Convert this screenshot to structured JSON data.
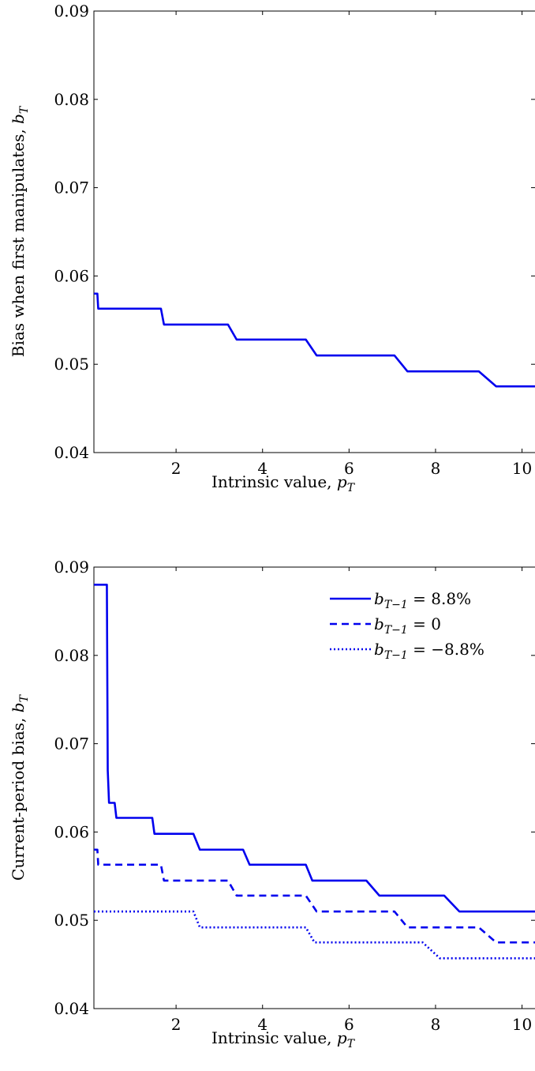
{
  "colors": {
    "series": "#0000ee",
    "axis": "#000000",
    "background": "#ffffff"
  },
  "chart_data": [
    {
      "type": "line",
      "xlabel": "Intrinsic value, ",
      "xlabel_var": "p",
      "xlabel_sub": "T",
      "ylabel": "Bias when first manipulates, ",
      "ylabel_var": "b",
      "ylabel_sub": "T",
      "xlim": [
        0.1,
        10.3
      ],
      "ylim": [
        0.04,
        0.09
      ],
      "xticks": [
        2,
        4,
        6,
        8,
        10
      ],
      "xtick_labels": [
        "2",
        "4",
        "6",
        "8",
        "10"
      ],
      "yticks": [
        0.04,
        0.05,
        0.06,
        0.07,
        0.08,
        0.09
      ],
      "ytick_labels": [
        "0.04",
        "0.05",
        "0.06",
        "0.07",
        "0.08",
        "0.09"
      ],
      "grid": false,
      "series": [
        {
          "style": "solid",
          "points": [
            [
              0.1,
              0.058
            ],
            [
              0.18,
              0.058
            ],
            [
              0.2,
              0.0563
            ],
            [
              1.65,
              0.0563
            ],
            [
              1.72,
              0.0545
            ],
            [
              3.2,
              0.0545
            ],
            [
              3.4,
              0.0528
            ],
            [
              5.0,
              0.0528
            ],
            [
              5.25,
              0.051
            ],
            [
              7.05,
              0.051
            ],
            [
              7.35,
              0.0492
            ],
            [
              9.0,
              0.0492
            ],
            [
              9.4,
              0.0475
            ],
            [
              10.3,
              0.0475
            ]
          ]
        }
      ]
    },
    {
      "type": "line",
      "xlabel": "Intrinsic value, ",
      "xlabel_var": "p",
      "xlabel_sub": "T",
      "ylabel": "Current-period bias, ",
      "ylabel_var": "b",
      "ylabel_sub": "T",
      "xlim": [
        0.1,
        10.3
      ],
      "ylim": [
        0.04,
        0.09
      ],
      "xticks": [
        2,
        4,
        6,
        8,
        10
      ],
      "xtick_labels": [
        "2",
        "4",
        "6",
        "8",
        "10"
      ],
      "yticks": [
        0.04,
        0.05,
        0.06,
        0.07,
        0.08,
        0.09
      ],
      "ytick_labels": [
        "0.04",
        "0.05",
        "0.06",
        "0.07",
        "0.08",
        "0.09"
      ],
      "grid": false,
      "legend_position": "top-right",
      "series": [
        {
          "legend_prefix": "b",
          "legend_sub": "T−1",
          "legend_rest": " = 8.8%",
          "style": "solid",
          "points": [
            [
              0.1,
              0.088
            ],
            [
              0.4,
              0.088
            ],
            [
              0.42,
              0.067
            ],
            [
              0.45,
              0.0633
            ],
            [
              0.58,
              0.0633
            ],
            [
              0.62,
              0.0616
            ],
            [
              1.45,
              0.0616
            ],
            [
              1.5,
              0.0598
            ],
            [
              2.4,
              0.0598
            ],
            [
              2.55,
              0.058
            ],
            [
              3.55,
              0.058
            ],
            [
              3.7,
              0.0563
            ],
            [
              5.0,
              0.0563
            ],
            [
              5.15,
              0.0545
            ],
            [
              6.4,
              0.0545
            ],
            [
              6.7,
              0.0528
            ],
            [
              8.2,
              0.0528
            ],
            [
              8.55,
              0.051
            ],
            [
              10.3,
              0.051
            ]
          ]
        },
        {
          "legend_prefix": "b",
          "legend_sub": "T−1",
          "legend_rest": " = 0",
          "style": "dashed",
          "points": [
            [
              0.1,
              0.058
            ],
            [
              0.18,
              0.058
            ],
            [
              0.2,
              0.0563
            ],
            [
              1.65,
              0.0563
            ],
            [
              1.72,
              0.0545
            ],
            [
              3.2,
              0.0545
            ],
            [
              3.4,
              0.0528
            ],
            [
              5.0,
              0.0528
            ],
            [
              5.25,
              0.051
            ],
            [
              7.05,
              0.051
            ],
            [
              7.35,
              0.0492
            ],
            [
              9.0,
              0.0492
            ],
            [
              9.4,
              0.0475
            ],
            [
              10.3,
              0.0475
            ]
          ]
        },
        {
          "legend_prefix": "b",
          "legend_sub": "T−1",
          "legend_rest": " = −8.8%",
          "style": "dotted",
          "points": [
            [
              0.1,
              0.051
            ],
            [
              2.4,
              0.051
            ],
            [
              2.55,
              0.0492
            ],
            [
              5.0,
              0.0492
            ],
            [
              5.2,
              0.0475
            ],
            [
              7.7,
              0.0475
            ],
            [
              8.1,
              0.0457
            ],
            [
              10.3,
              0.0457
            ]
          ]
        }
      ]
    }
  ]
}
